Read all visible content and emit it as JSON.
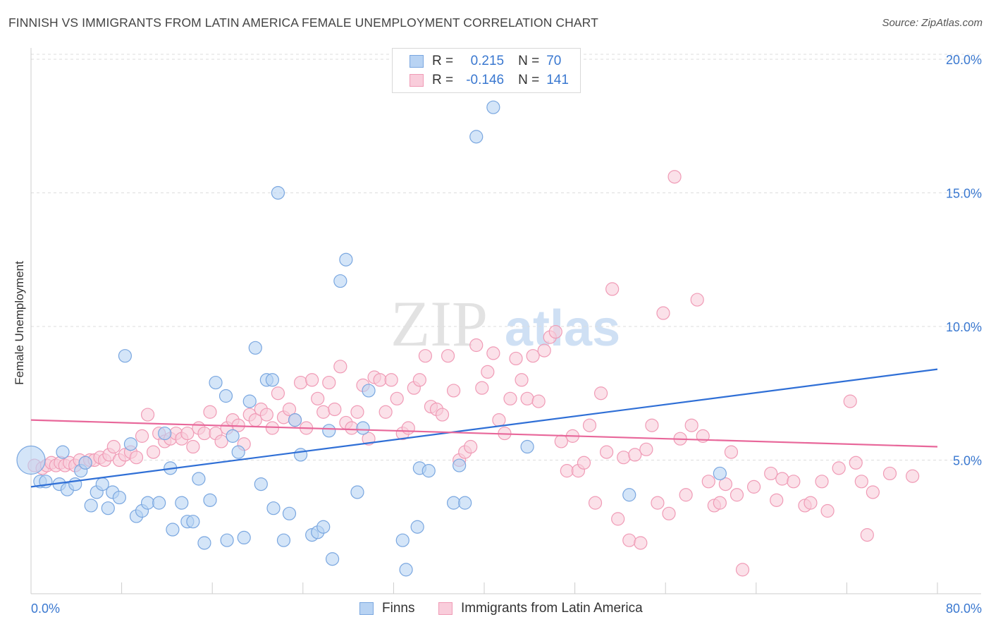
{
  "title": "FINNISH VS IMMIGRANTS FROM LATIN AMERICA FEMALE UNEMPLOYMENT CORRELATION CHART",
  "source": "Source: ZipAtlas.com",
  "watermark": {
    "zip": "ZIP",
    "atlas": "atlas"
  },
  "legend": {
    "r_label": "R =",
    "n_label": "N =",
    "rows": [
      {
        "r": "0.215",
        "n": "70"
      },
      {
        "r": "-0.146",
        "n": "141"
      }
    ]
  },
  "colors": {
    "finns_fill": "#b8d3f3",
    "finns_stroke": "#7aa7e0",
    "finns_line": "#2f6fd6",
    "latin_fill": "#f9cddb",
    "latin_stroke": "#f09bb6",
    "latin_line": "#e8679a",
    "tick_label": "#3a78d0",
    "grid": "#dddddd"
  },
  "chart_data": {
    "type": "scatter",
    "title": "FINNISH VS IMMIGRANTS FROM LATIN AMERICA FEMALE UNEMPLOYMENT CORRELATION CHART",
    "xlabel": "",
    "ylabel": "Female Unemployment",
    "xlim": [
      0,
      80
    ],
    "ylim": [
      0,
      20.5
    ],
    "x_tick_labels": [
      "0.0%",
      "80.0%"
    ],
    "y_ticks": [
      5,
      10,
      15,
      20
    ],
    "y_tick_labels": [
      "5.0%",
      "10.0%",
      "15.0%",
      "20.0%"
    ],
    "grid": "horizontal dashed",
    "legend_position": "top-center and bottom",
    "series": [
      {
        "name": "Finns",
        "r": 0.215,
        "n": 70,
        "trend": {
          "x": [
            0,
            80
          ],
          "y": [
            4.0,
            8.4
          ]
        },
        "points": [
          [
            0.0,
            5.0
          ],
          [
            0.8,
            4.2
          ],
          [
            1.3,
            4.2
          ],
          [
            2.5,
            4.1
          ],
          [
            2.8,
            5.3
          ],
          [
            3.2,
            3.9
          ],
          [
            3.9,
            4.1
          ],
          [
            4.4,
            4.6
          ],
          [
            4.8,
            4.9
          ],
          [
            5.3,
            3.3
          ],
          [
            5.8,
            3.8
          ],
          [
            6.3,
            4.1
          ],
          [
            6.8,
            3.2
          ],
          [
            7.2,
            3.8
          ],
          [
            7.8,
            3.6
          ],
          [
            8.3,
            8.9
          ],
          [
            8.8,
            5.6
          ],
          [
            9.3,
            2.9
          ],
          [
            9.8,
            3.1
          ],
          [
            10.3,
            3.4
          ],
          [
            11.3,
            3.4
          ],
          [
            11.8,
            6.0
          ],
          [
            12.3,
            4.7
          ],
          [
            12.5,
            2.4
          ],
          [
            13.3,
            3.4
          ],
          [
            13.8,
            2.7
          ],
          [
            14.3,
            2.7
          ],
          [
            14.8,
            4.3
          ],
          [
            15.3,
            1.9
          ],
          [
            15.8,
            3.5
          ],
          [
            16.3,
            7.9
          ],
          [
            17.2,
            7.4
          ],
          [
            17.3,
            2.0
          ],
          [
            17.8,
            5.9
          ],
          [
            18.3,
            5.3
          ],
          [
            18.8,
            2.1
          ],
          [
            19.3,
            7.2
          ],
          [
            19.8,
            9.2
          ],
          [
            20.3,
            4.1
          ],
          [
            20.8,
            8.0
          ],
          [
            21.3,
            8.0
          ],
          [
            21.4,
            3.2
          ],
          [
            21.8,
            15.0
          ],
          [
            22.3,
            2.0
          ],
          [
            22.8,
            3.0
          ],
          [
            23.3,
            6.5
          ],
          [
            23.8,
            5.2
          ],
          [
            24.8,
            2.2
          ],
          [
            25.3,
            2.3
          ],
          [
            25.8,
            2.5
          ],
          [
            26.3,
            6.1
          ],
          [
            26.6,
            1.3
          ],
          [
            27.3,
            11.7
          ],
          [
            27.8,
            12.5
          ],
          [
            28.8,
            3.8
          ],
          [
            29.3,
            6.2
          ],
          [
            29.8,
            7.6
          ],
          [
            32.8,
            2.0
          ],
          [
            33.1,
            0.9
          ],
          [
            34.1,
            2.5
          ],
          [
            34.3,
            4.7
          ],
          [
            35.1,
            4.6
          ],
          [
            37.3,
            3.4
          ],
          [
            37.8,
            4.8
          ],
          [
            38.3,
            3.4
          ],
          [
            39.3,
            17.1
          ],
          [
            40.8,
            18.2
          ],
          [
            43.8,
            5.5
          ],
          [
            52.8,
            3.7
          ],
          [
            60.8,
            4.5
          ]
        ]
      },
      {
        "name": "Immigrants from Latin America",
        "r": -0.146,
        "n": 141,
        "trend": {
          "x": [
            0,
            80
          ],
          "y": [
            6.5,
            5.5
          ]
        },
        "points": [
          [
            0.3,
            4.8
          ],
          [
            1.0,
            4.7
          ],
          [
            1.4,
            4.8
          ],
          [
            1.8,
            4.9
          ],
          [
            2.2,
            4.8
          ],
          [
            2.6,
            4.9
          ],
          [
            3.0,
            4.8
          ],
          [
            3.4,
            4.9
          ],
          [
            3.9,
            4.8
          ],
          [
            4.3,
            5.0
          ],
          [
            4.8,
            4.9
          ],
          [
            5.2,
            5.0
          ],
          [
            5.6,
            5.0
          ],
          [
            6.1,
            5.1
          ],
          [
            6.5,
            5.0
          ],
          [
            6.9,
            5.2
          ],
          [
            7.3,
            5.5
          ],
          [
            7.8,
            5.0
          ],
          [
            8.3,
            5.2
          ],
          [
            8.8,
            5.3
          ],
          [
            9.3,
            5.1
          ],
          [
            9.8,
            5.9
          ],
          [
            10.3,
            6.7
          ],
          [
            10.8,
            5.3
          ],
          [
            11.3,
            6.0
          ],
          [
            11.8,
            5.7
          ],
          [
            12.3,
            5.8
          ],
          [
            12.8,
            6.0
          ],
          [
            13.3,
            5.8
          ],
          [
            13.8,
            6.0
          ],
          [
            14.3,
            5.5
          ],
          [
            14.8,
            6.2
          ],
          [
            15.3,
            6.0
          ],
          [
            15.8,
            6.8
          ],
          [
            16.3,
            6.0
          ],
          [
            16.8,
            5.7
          ],
          [
            17.3,
            6.2
          ],
          [
            17.8,
            6.5
          ],
          [
            18.3,
            6.3
          ],
          [
            18.8,
            5.6
          ],
          [
            19.3,
            6.7
          ],
          [
            19.8,
            6.5
          ],
          [
            20.3,
            6.9
          ],
          [
            20.8,
            6.7
          ],
          [
            21.3,
            6.2
          ],
          [
            21.8,
            7.5
          ],
          [
            22.3,
            6.6
          ],
          [
            22.8,
            6.9
          ],
          [
            23.3,
            6.5
          ],
          [
            23.8,
            7.9
          ],
          [
            24.3,
            6.2
          ],
          [
            24.8,
            8.0
          ],
          [
            25.3,
            7.3
          ],
          [
            25.8,
            6.8
          ],
          [
            26.3,
            7.9
          ],
          [
            26.8,
            6.9
          ],
          [
            27.3,
            8.5
          ],
          [
            27.8,
            6.4
          ],
          [
            28.3,
            6.2
          ],
          [
            28.8,
            6.8
          ],
          [
            29.3,
            7.8
          ],
          [
            29.8,
            5.8
          ],
          [
            30.3,
            8.1
          ],
          [
            30.8,
            8.0
          ],
          [
            31.3,
            6.8
          ],
          [
            31.8,
            8.0
          ],
          [
            32.3,
            7.3
          ],
          [
            32.8,
            6.0
          ],
          [
            33.3,
            6.2
          ],
          [
            33.8,
            7.7
          ],
          [
            34.3,
            8.0
          ],
          [
            34.8,
            8.9
          ],
          [
            35.3,
            7.0
          ],
          [
            35.8,
            6.9
          ],
          [
            36.3,
            6.7
          ],
          [
            36.8,
            8.9
          ],
          [
            37.3,
            7.6
          ],
          [
            37.8,
            5.0
          ],
          [
            38.3,
            5.3
          ],
          [
            38.8,
            5.5
          ],
          [
            39.3,
            9.3
          ],
          [
            39.8,
            7.7
          ],
          [
            40.3,
            8.3
          ],
          [
            40.8,
            9.0
          ],
          [
            41.3,
            6.5
          ],
          [
            41.8,
            6.0
          ],
          [
            42.3,
            7.3
          ],
          [
            42.8,
            8.8
          ],
          [
            43.3,
            8.0
          ],
          [
            43.8,
            7.3
          ],
          [
            44.3,
            8.9
          ],
          [
            44.8,
            7.2
          ],
          [
            45.3,
            9.1
          ],
          [
            45.8,
            9.6
          ],
          [
            46.3,
            9.8
          ],
          [
            46.8,
            5.7
          ],
          [
            47.3,
            4.6
          ],
          [
            47.8,
            5.9
          ],
          [
            48.3,
            4.6
          ],
          [
            48.8,
            4.9
          ],
          [
            49.3,
            6.3
          ],
          [
            49.8,
            3.4
          ],
          [
            50.3,
            7.5
          ],
          [
            50.8,
            5.3
          ],
          [
            51.3,
            11.4
          ],
          [
            51.8,
            2.8
          ],
          [
            52.3,
            5.1
          ],
          [
            52.8,
            2.0
          ],
          [
            53.3,
            5.2
          ],
          [
            53.8,
            1.9
          ],
          [
            54.3,
            5.4
          ],
          [
            54.8,
            6.3
          ],
          [
            55.3,
            3.4
          ],
          [
            55.8,
            10.5
          ],
          [
            56.3,
            3.0
          ],
          [
            56.8,
            15.6
          ],
          [
            57.3,
            5.8
          ],
          [
            57.8,
            3.7
          ],
          [
            58.3,
            6.3
          ],
          [
            58.8,
            11.0
          ],
          [
            59.3,
            5.9
          ],
          [
            59.8,
            4.2
          ],
          [
            60.3,
            3.3
          ],
          [
            60.8,
            3.4
          ],
          [
            61.3,
            4.1
          ],
          [
            61.8,
            5.3
          ],
          [
            62.3,
            3.7
          ],
          [
            62.8,
            0.9
          ],
          [
            63.8,
            4.0
          ],
          [
            65.3,
            4.5
          ],
          [
            65.8,
            3.5
          ],
          [
            66.3,
            4.3
          ],
          [
            67.3,
            4.2
          ],
          [
            68.3,
            3.3
          ],
          [
            68.8,
            3.4
          ],
          [
            69.8,
            4.2
          ],
          [
            70.3,
            3.1
          ],
          [
            71.3,
            4.7
          ],
          [
            72.3,
            7.2
          ],
          [
            72.8,
            4.9
          ],
          [
            73.3,
            4.2
          ],
          [
            73.8,
            2.2
          ],
          [
            74.3,
            3.8
          ],
          [
            75.8,
            4.5
          ],
          [
            77.8,
            4.4
          ]
        ]
      }
    ]
  },
  "bottom_legend": {
    "finns": "Finns",
    "latin": "Immigrants from Latin America"
  }
}
